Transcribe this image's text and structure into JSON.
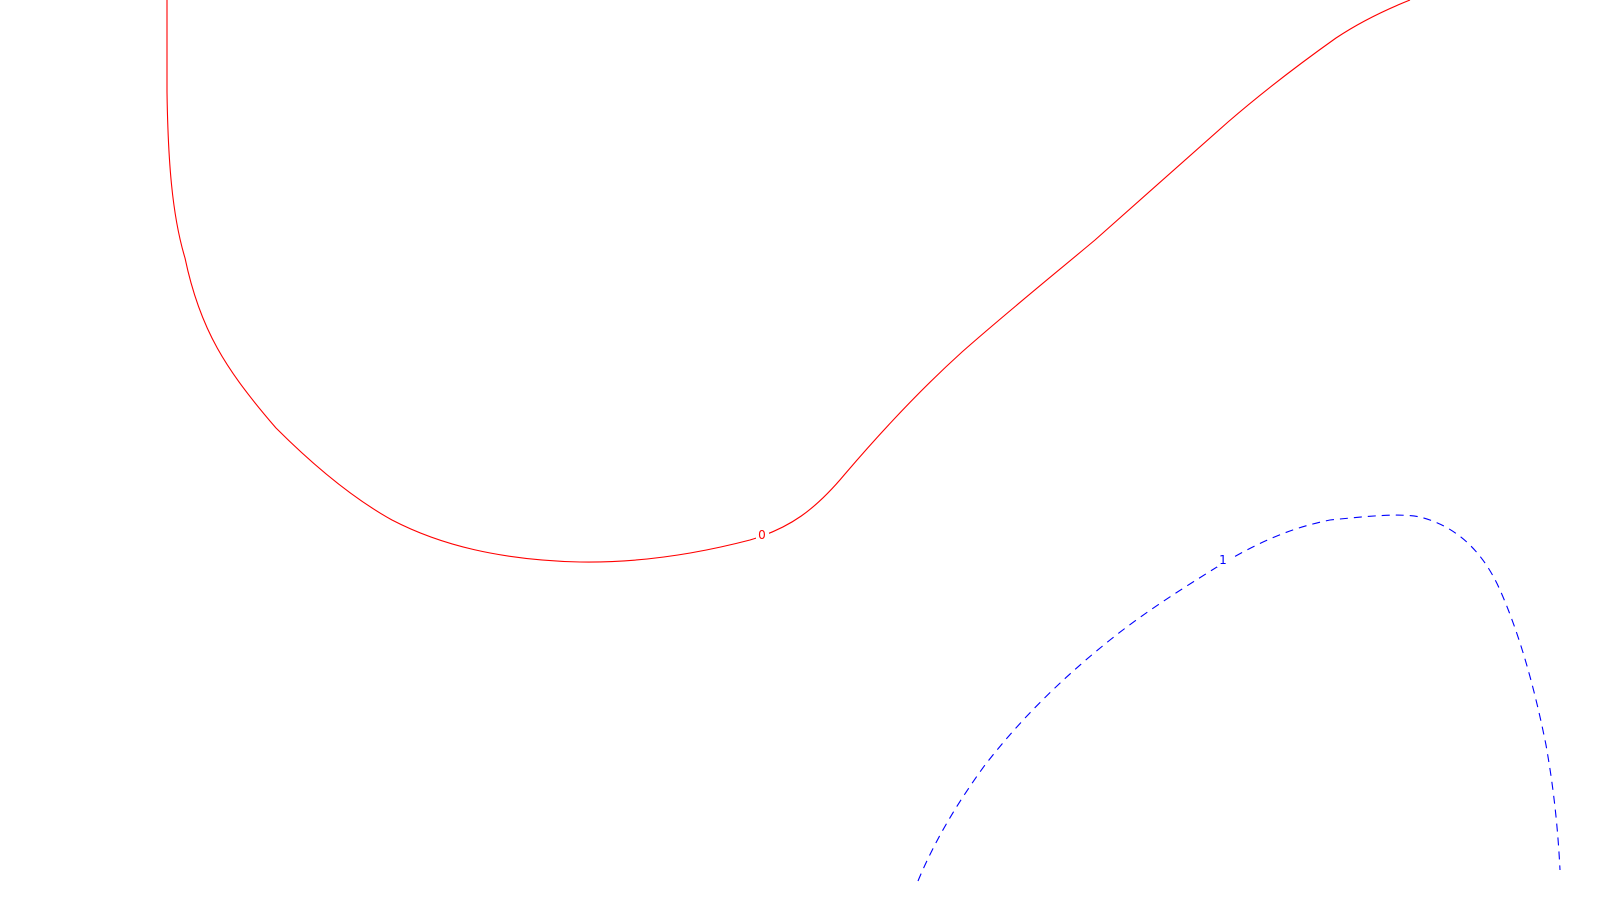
{
  "chart_data": {
    "type": "contour",
    "title": "",
    "xlabel": "",
    "ylabel": "",
    "grid": false,
    "series": [
      {
        "level": 0,
        "label": "0",
        "color": "#ff0000",
        "style": "solid"
      },
      {
        "level": 1,
        "label": "1",
        "color": "#0000ff",
        "style": "dashed"
      }
    ]
  }
}
